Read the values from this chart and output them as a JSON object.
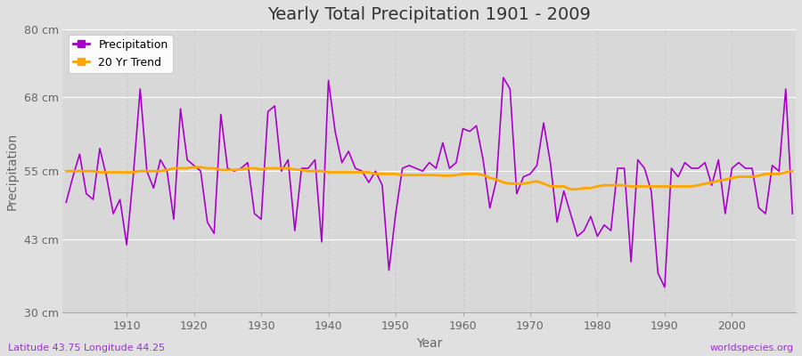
{
  "title": "Yearly Total Precipitation 1901 - 2009",
  "xlabel": "Year",
  "ylabel": "Precipitation",
  "lat_lon_label": "Latitude 43.75 Longitude 44.25",
  "watermark": "worldspecies.org",
  "years": [
    1901,
    1902,
    1903,
    1904,
    1905,
    1906,
    1907,
    1908,
    1909,
    1910,
    1911,
    1912,
    1913,
    1914,
    1915,
    1916,
    1917,
    1918,
    1919,
    1920,
    1921,
    1922,
    1923,
    1924,
    1925,
    1926,
    1927,
    1928,
    1929,
    1930,
    1931,
    1932,
    1933,
    1934,
    1935,
    1936,
    1937,
    1938,
    1939,
    1940,
    1941,
    1942,
    1943,
    1944,
    1945,
    1946,
    1947,
    1948,
    1949,
    1950,
    1951,
    1952,
    1953,
    1954,
    1955,
    1956,
    1957,
    1958,
    1959,
    1960,
    1961,
    1962,
    1963,
    1964,
    1965,
    1966,
    1967,
    1968,
    1969,
    1970,
    1971,
    1972,
    1973,
    1974,
    1975,
    1976,
    1977,
    1978,
    1979,
    1980,
    1981,
    1982,
    1983,
    1984,
    1985,
    1986,
    1987,
    1988,
    1989,
    1990,
    1991,
    1992,
    1993,
    1994,
    1995,
    1996,
    1997,
    1998,
    1999,
    2000,
    2001,
    2002,
    2003,
    2004,
    2005,
    2006,
    2007,
    2008,
    2009
  ],
  "precip": [
    49.5,
    54.0,
    58.0,
    51.0,
    50.0,
    59.0,
    54.0,
    47.5,
    50.0,
    42.0,
    54.5,
    69.5,
    55.0,
    52.0,
    57.0,
    55.0,
    46.5,
    66.0,
    57.0,
    56.0,
    55.0,
    46.0,
    44.0,
    65.0,
    55.5,
    55.0,
    55.5,
    56.5,
    47.5,
    46.5,
    65.5,
    66.5,
    55.0,
    57.0,
    44.5,
    55.5,
    55.5,
    57.0,
    42.5,
    71.0,
    62.0,
    56.5,
    58.5,
    55.5,
    55.0,
    53.0,
    55.0,
    52.5,
    37.5,
    47.5,
    55.5,
    56.0,
    55.5,
    55.0,
    56.5,
    55.5,
    60.0,
    55.5,
    56.5,
    62.5,
    62.0,
    63.0,
    57.0,
    48.5,
    53.5,
    71.5,
    69.5,
    51.0,
    54.0,
    54.5,
    56.0,
    63.5,
    56.5,
    46.0,
    51.5,
    47.5,
    43.5,
    44.5,
    47.0,
    43.5,
    45.5,
    44.5,
    55.5,
    55.5,
    39.0,
    57.0,
    55.5,
    51.5,
    37.0,
    34.5,
    55.5,
    54.0,
    56.5,
    55.5,
    55.5,
    56.5,
    52.5,
    57.0,
    47.5,
    55.5,
    56.5,
    55.5,
    55.5,
    48.5,
    47.5,
    56.0,
    55.0,
    69.5,
    47.5
  ],
  "trend": [
    55.0,
    55.0,
    55.0,
    55.0,
    55.0,
    54.8,
    54.8,
    54.8,
    54.8,
    54.8,
    54.8,
    55.0,
    55.0,
    55.0,
    55.0,
    55.2,
    55.5,
    55.5,
    55.5,
    55.7,
    55.7,
    55.5,
    55.5,
    55.2,
    55.2,
    55.2,
    55.3,
    55.5,
    55.5,
    55.3,
    55.5,
    55.5,
    55.5,
    55.5,
    55.3,
    55.2,
    55.0,
    55.0,
    55.0,
    54.8,
    54.8,
    54.8,
    54.8,
    54.8,
    54.8,
    54.8,
    54.5,
    54.5,
    54.5,
    54.5,
    54.3,
    54.3,
    54.3,
    54.3,
    54.3,
    54.3,
    54.2,
    54.2,
    54.3,
    54.5,
    54.5,
    54.5,
    54.3,
    53.8,
    53.5,
    53.0,
    52.8,
    52.8,
    52.8,
    53.0,
    53.2,
    52.8,
    52.3,
    52.3,
    52.3,
    51.8,
    51.8,
    52.0,
    52.0,
    52.3,
    52.5,
    52.5,
    52.5,
    52.5,
    52.3,
    52.3,
    52.3,
    52.3,
    52.3,
    52.3,
    52.3,
    52.3,
    52.3,
    52.3,
    52.5,
    52.8,
    53.0,
    53.3,
    53.5,
    53.8,
    54.0,
    54.0,
    54.0,
    54.2,
    54.5,
    54.5,
    54.5,
    54.8,
    55.0
  ],
  "ylim": [
    30,
    80
  ],
  "yticks": [
    30,
    43,
    55,
    68,
    80
  ],
  "ytick_labels": [
    "30 cm",
    "43 cm",
    "55 cm",
    "68 cm",
    "80 cm"
  ],
  "xticks": [
    1910,
    1920,
    1930,
    1940,
    1950,
    1960,
    1970,
    1980,
    1990,
    2000
  ],
  "precip_color": "#AA00CC",
  "trend_color": "#FFA500",
  "fig_bg_color": "#E0E0E0",
  "plot_bg_color": "#D8D8D8",
  "grid_color_h": "#FFFFFF",
  "grid_color_v": "#CCCCCC",
  "title_fontsize": 14,
  "axis_label_fontsize": 10,
  "tick_label_fontsize": 9,
  "legend_fontsize": 9,
  "text_color": "#666666",
  "accent_color": "#9933CC"
}
